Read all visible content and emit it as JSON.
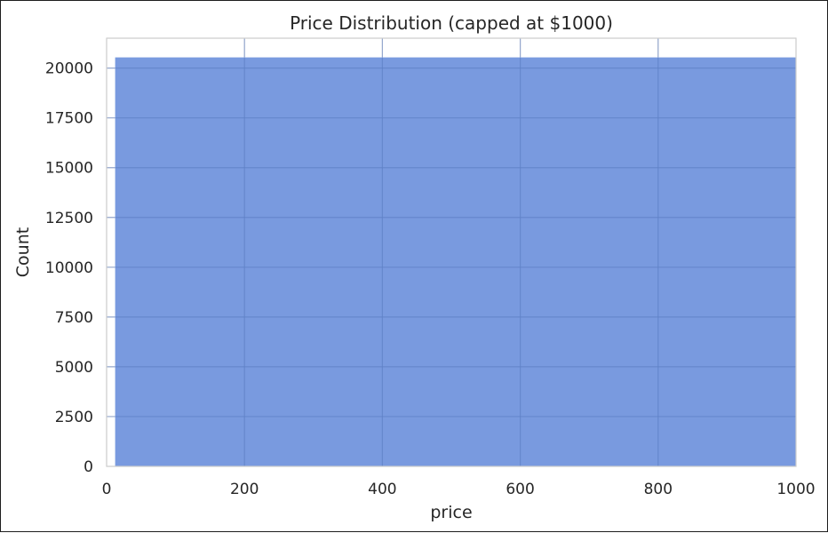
{
  "chart_data": {
    "type": "bar",
    "title": "Price Distribution (capped at $1000)",
    "xlabel": "price",
    "ylabel": "Count",
    "xlim": [
      0,
      1000
    ],
    "ylim": [
      0,
      21500
    ],
    "x_ticks": [
      "0",
      "200",
      "400",
      "600",
      "800",
      "1000"
    ],
    "y_ticks": [
      "0",
      "2500",
      "5000",
      "7500",
      "10000",
      "12500",
      "15000",
      "17500",
      "20000"
    ],
    "bins": [
      {
        "x_start": 12,
        "x_end": 1000,
        "count": 20550
      }
    ],
    "grid": true,
    "bar_color": "#5b84d8"
  }
}
